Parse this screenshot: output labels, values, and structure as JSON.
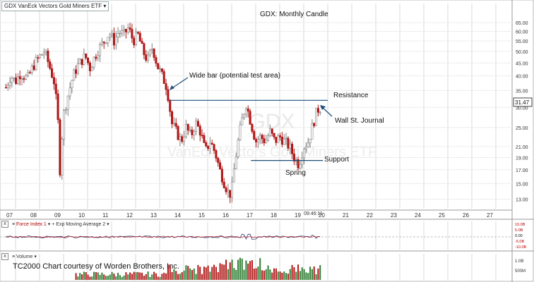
{
  "symbol_dropdown": "GDX VanEck Vectors Gold Miners ETF",
  "watermark_symbol": "GDX",
  "watermark_name": "VanEck Vectors Gold Miners ETF",
  "colors": {
    "up": "#7f7f7f",
    "down": "#b01515",
    "line": "#1f4e79",
    "grid": "#d8d8d8"
  },
  "force_index_pane": {
    "label": "Force Index 1",
    "overlay": "Exp Moving Average 2",
    "ticks": [
      "10.0B",
      "5.0B",
      "0.00",
      "-5.0B",
      "-10.0B"
    ]
  },
  "volume_pane": {
    "label": "Volume",
    "ticks": [
      "1.0B",
      "500M"
    ],
    "credit": "TC2000 Chart courtesy of Worden Brothers, Inc."
  },
  "chart_data": {
    "type": "candlestick",
    "title": "GDX:  Monthly Candle",
    "x_tick_labels": [
      "07",
      "08",
      "09",
      "10",
      "11",
      "12",
      "13",
      "14",
      "15",
      "16",
      "17",
      "18",
      "19",
      "20",
      "21",
      "22",
      "23",
      "24",
      "25",
      "26",
      "27"
    ],
    "y_tick_labels": [
      "65.00",
      "60.00",
      "55.00",
      "50.00",
      "45.00",
      "40.00",
      "35.00",
      "30.00",
      "25.00",
      "21.00",
      "19.00",
      "17.00",
      "15.00",
      "13.00"
    ],
    "y_scale": "log",
    "ylim": [
      12,
      68
    ],
    "last_price": "31.47",
    "cursor_time": "09:46:11",
    "annotations": [
      {
        "text": "Wide bar (potential test area)",
        "x": 2013.4,
        "y": 40
      },
      {
        "text": "Resistance",
        "x": 2019.8,
        "y": 32
      },
      {
        "text": "Wall St. Journal",
        "x": 2019.8,
        "y": 27
      },
      {
        "text": "Support",
        "x": 2019.8,
        "y": 18.5
      },
      {
        "text": "Spring",
        "x": 2019.3,
        "y": 16.2
      }
    ],
    "resistance_level": 32,
    "support_level": 18.5,
    "monthly_close_path": [
      [
        2006.6,
        36
      ],
      [
        2006.8,
        40
      ],
      [
        2007.0,
        38
      ],
      [
        2007.2,
        41
      ],
      [
        2007.5,
        39
      ],
      [
        2007.75,
        44
      ],
      [
        2007.95,
        47
      ],
      [
        2008.2,
        50
      ],
      [
        2008.4,
        44
      ],
      [
        2008.6,
        38
      ],
      [
        2008.75,
        28
      ],
      [
        2008.85,
        17
      ],
      [
        2009.0,
        28
      ],
      [
        2009.2,
        34
      ],
      [
        2009.4,
        40
      ],
      [
        2009.6,
        44
      ],
      [
        2009.9,
        48
      ],
      [
        2010.1,
        43
      ],
      [
        2010.4,
        50
      ],
      [
        2010.7,
        55
      ],
      [
        2010.9,
        59
      ],
      [
        2011.1,
        55
      ],
      [
        2011.3,
        60
      ],
      [
        2011.5,
        58
      ],
      [
        2011.7,
        62
      ],
      [
        2011.9,
        55
      ],
      [
        2012.1,
        58
      ],
      [
        2012.3,
        50
      ],
      [
        2012.5,
        46
      ],
      [
        2012.7,
        52
      ],
      [
        2012.9,
        44
      ],
      [
        2013.1,
        40
      ],
      [
        2013.3,
        36
      ],
      [
        2013.5,
        26
      ],
      [
        2013.7,
        24
      ],
      [
        2013.9,
        22
      ],
      [
        2014.1,
        25
      ],
      [
        2014.3,
        23
      ],
      [
        2014.5,
        26
      ],
      [
        2014.7,
        24
      ],
      [
        2014.9,
        20
      ],
      [
        2015.1,
        22
      ],
      [
        2015.3,
        20
      ],
      [
        2015.5,
        17
      ],
      [
        2015.7,
        15
      ],
      [
        2015.9,
        13.5
      ],
      [
        2016.0,
        14
      ],
      [
        2016.2,
        20
      ],
      [
        2016.4,
        26
      ],
      [
        2016.6,
        31
      ],
      [
        2016.8,
        26
      ],
      [
        2017.0,
        22
      ],
      [
        2017.2,
        23
      ],
      [
        2017.4,
        22
      ],
      [
        2017.6,
        24
      ],
      [
        2017.8,
        22
      ],
      [
        2018.0,
        23
      ],
      [
        2018.2,
        22
      ],
      [
        2018.4,
        21
      ],
      [
        2018.6,
        19
      ],
      [
        2018.8,
        17.8
      ],
      [
        2019.0,
        21
      ],
      [
        2019.2,
        22
      ],
      [
        2019.4,
        26
      ],
      [
        2019.55,
        29
      ],
      [
        2019.65,
        30
      ],
      [
        2019.75,
        29.5
      ]
    ]
  }
}
